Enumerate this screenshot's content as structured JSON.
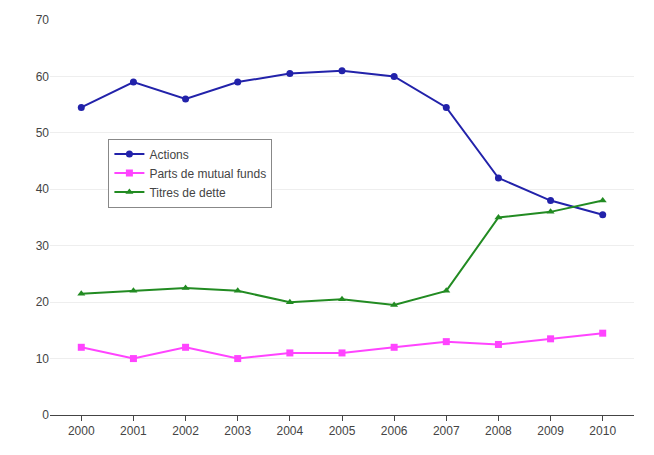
{
  "chart_data": {
    "type": "line",
    "x": [
      2000,
      2001,
      2002,
      2003,
      2004,
      2005,
      2006,
      2007,
      2008,
      2009,
      2010
    ],
    "series": [
      {
        "name": "Actions",
        "color": "#2222AA",
        "marker": "circle",
        "values": [
          54.5,
          59,
          56,
          59,
          60.5,
          61,
          60,
          54.5,
          42,
          38,
          35.5
        ]
      },
      {
        "name": "Parts de mutual funds",
        "color": "#FF44FF",
        "marker": "square",
        "values": [
          12,
          10,
          12,
          10,
          11,
          11,
          12,
          13,
          12.5,
          13.5,
          14.5
        ]
      },
      {
        "name": "Titres de dette",
        "color": "#228B22",
        "marker": "triangle-up",
        "values": [
          21.5,
          22,
          22.5,
          22,
          20,
          20.5,
          19.5,
          22,
          35,
          36,
          38
        ]
      }
    ],
    "xlim": [
      1999.4,
      2010.6
    ],
    "xticks": [
      2000,
      2001,
      2002,
      2003,
      2004,
      2005,
      2006,
      2007,
      2008,
      2009,
      2010
    ],
    "ylim": [
      0,
      70
    ],
    "yticks": [
      0,
      10,
      20,
      30,
      40,
      50,
      60,
      70
    ],
    "grid": true,
    "legend": "upper left"
  }
}
